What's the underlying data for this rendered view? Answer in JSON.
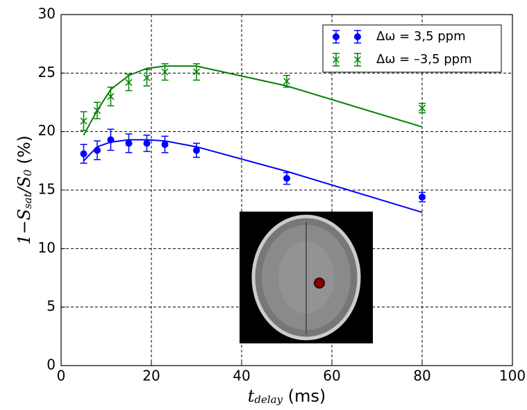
{
  "chart_data": {
    "type": "errorbar",
    "xlabel": [
      "t",
      "delay",
      " (ms)"
    ],
    "ylabel": [
      "1−",
      "S",
      "sat",
      "/",
      "S",
      "0",
      "  (%)"
    ],
    "xlim": [
      0,
      100
    ],
    "xticks": [
      0,
      20,
      40,
      60,
      80,
      100
    ],
    "ylim": [
      0,
      30
    ],
    "yticks": [
      0,
      5,
      10,
      15,
      20,
      25,
      30
    ],
    "grid": true,
    "legend": "upper right",
    "series": [
      {
        "name": "Δω = 3,5 ppm",
        "color": "#0000ff",
        "marker": "circle",
        "x": [
          5,
          8,
          11,
          15,
          19,
          23,
          30,
          50,
          80
        ],
        "values": [
          18.1,
          18.4,
          19.3,
          19.0,
          19.0,
          18.9,
          18.4,
          16.0,
          14.4
        ],
        "errors": [
          0.8,
          0.8,
          0.9,
          0.8,
          0.7,
          0.7,
          0.6,
          0.5,
          0.4
        ],
        "fit": {
          "x": [
            5,
            8,
            11,
            15,
            19,
            23,
            30,
            50,
            80
          ],
          "values": [
            17.5,
            18.7,
            19.1,
            19.3,
            19.3,
            19.2,
            18.7,
            16.6,
            13.1
          ]
        }
      },
      {
        "name": "Δω = –3,5 ppm",
        "color": "#008000",
        "marker": "x",
        "x": [
          5,
          8,
          11,
          15,
          19,
          23,
          30,
          50,
          80
        ],
        "values": [
          20.9,
          21.8,
          23.0,
          24.2,
          24.6,
          25.1,
          25.1,
          24.3,
          22.0
        ],
        "errors": [
          0.8,
          0.7,
          0.8,
          0.7,
          0.7,
          0.7,
          0.7,
          0.5,
          0.4
        ],
        "fit": {
          "x": [
            5,
            8,
            11,
            15,
            19,
            23,
            30,
            50,
            80
          ],
          "values": [
            19.7,
            21.8,
            23.6,
            24.8,
            25.4,
            25.6,
            25.6,
            23.9,
            20.4
          ]
        }
      }
    ]
  }
}
